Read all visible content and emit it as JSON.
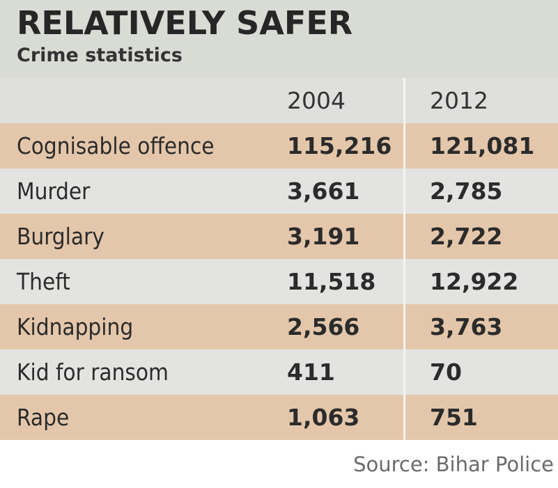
{
  "title": "RELATIVELY  SAFER",
  "subtitle": "Crime statistics",
  "source": "Source: Bihar Police",
  "colors": {
    "header_bg": "#d9dcd5",
    "row_tan": "#e4c7ab",
    "row_grey": "#e3e4e1"
  },
  "chart_data": {
    "type": "table",
    "title": "RELATIVELY  SAFER",
    "subtitle": "Crime statistics",
    "columns": [
      "2004",
      "2012"
    ],
    "rows": [
      {
        "label": "Cognisable offence",
        "values": [
          "115,216",
          "121,081"
        ]
      },
      {
        "label": "Murder",
        "values": [
          "3,661",
          "2,785"
        ]
      },
      {
        "label": "Burglary",
        "values": [
          "3,191",
          "2,722"
        ]
      },
      {
        "label": "Theft",
        "values": [
          "11,518",
          "12,922"
        ]
      },
      {
        "label": "Kidnapping",
        "values": [
          "2,566",
          "3,763"
        ]
      },
      {
        "label": "Kid for ransom",
        "values": [
          "411",
          "70"
        ]
      },
      {
        "label": "Rape",
        "values": [
          "1,063",
          "751"
        ]
      }
    ],
    "source": "Source: Bihar Police"
  }
}
